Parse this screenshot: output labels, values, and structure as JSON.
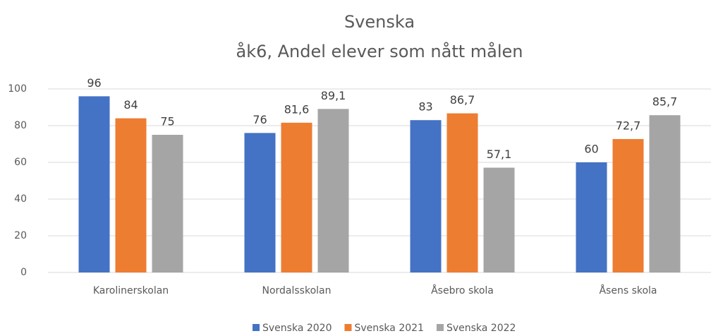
{
  "chart_data": {
    "type": "bar",
    "title": "Svenska",
    "subtitle": "åk6, Andel elever som nått målen",
    "categories": [
      "Karolinerskolan",
      "Nordalsskolan",
      "Åsebro skola",
      "Åsens skola"
    ],
    "series": [
      {
        "name": "Svenska 2020",
        "color": "#4472c4",
        "values": [
          96,
          76,
          83,
          60
        ],
        "value_labels": [
          "96",
          "76",
          "83",
          "60"
        ]
      },
      {
        "name": "Svenska 2021",
        "color": "#ed7d31",
        "values": [
          84,
          81.6,
          86.7,
          72.7
        ],
        "value_labels": [
          "84",
          "81,6",
          "86,7",
          "72,7"
        ]
      },
      {
        "name": "Svenska 2022",
        "color": "#a5a5a5",
        "values": [
          75,
          89.1,
          57.1,
          85.7
        ],
        "value_labels": [
          "75",
          "89,1",
          "57,1",
          "85,7"
        ]
      }
    ],
    "ylim": [
      0,
      100
    ],
    "yticks": [
      0,
      20,
      40,
      60,
      80,
      100
    ],
    "grid": true,
    "legend": "bottom"
  }
}
